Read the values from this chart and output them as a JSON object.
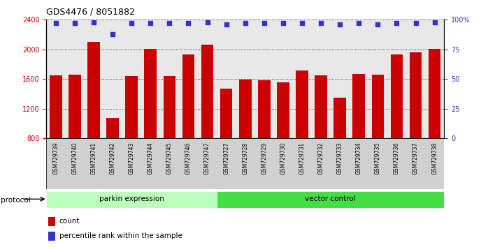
{
  "title": "GDS4476 / 8051882",
  "samples": [
    "GSM729739",
    "GSM729740",
    "GSM729741",
    "GSM729742",
    "GSM729743",
    "GSM729744",
    "GSM729745",
    "GSM729746",
    "GSM729747",
    "GSM729727",
    "GSM729728",
    "GSM729729",
    "GSM729730",
    "GSM729731",
    "GSM729732",
    "GSM729733",
    "GSM729734",
    "GSM729735",
    "GSM729736",
    "GSM729737",
    "GSM729738"
  ],
  "bar_values": [
    1650,
    1660,
    2100,
    1080,
    1640,
    2010,
    1640,
    1930,
    2060,
    1470,
    1590,
    1580,
    1560,
    1720,
    1650,
    1350,
    1670,
    1660,
    1930,
    1960,
    2010
  ],
  "percentile_values": [
    97,
    97,
    98,
    88,
    97,
    97,
    97,
    97,
    98,
    96,
    97,
    97,
    97,
    97,
    97,
    96,
    97,
    96,
    97,
    97,
    98
  ],
  "bar_color": "#cc0000",
  "dot_color": "#3333cc",
  "bar_bottom": 800,
  "ylim_left": [
    800,
    2400
  ],
  "ylim_right": [
    0,
    100
  ],
  "yticks_left": [
    800,
    1200,
    1600,
    2000,
    2400
  ],
  "yticks_right": [
    0,
    25,
    50,
    75,
    100
  ],
  "ytick_labels_right": [
    "0",
    "25",
    "50",
    "75",
    "100%"
  ],
  "group1_label": "parkin expression",
  "group2_label": "vector control",
  "group1_count": 9,
  "protocol_label": "protocol",
  "legend_count_label": "count",
  "legend_pct_label": "percentile rank within the sample",
  "plot_bg": "#e8e8e8",
  "title_fontsize": 9,
  "axis_fontsize": 7,
  "bar_width": 0.65,
  "group1_color": "#bbffbb",
  "group2_color": "#44dd44"
}
